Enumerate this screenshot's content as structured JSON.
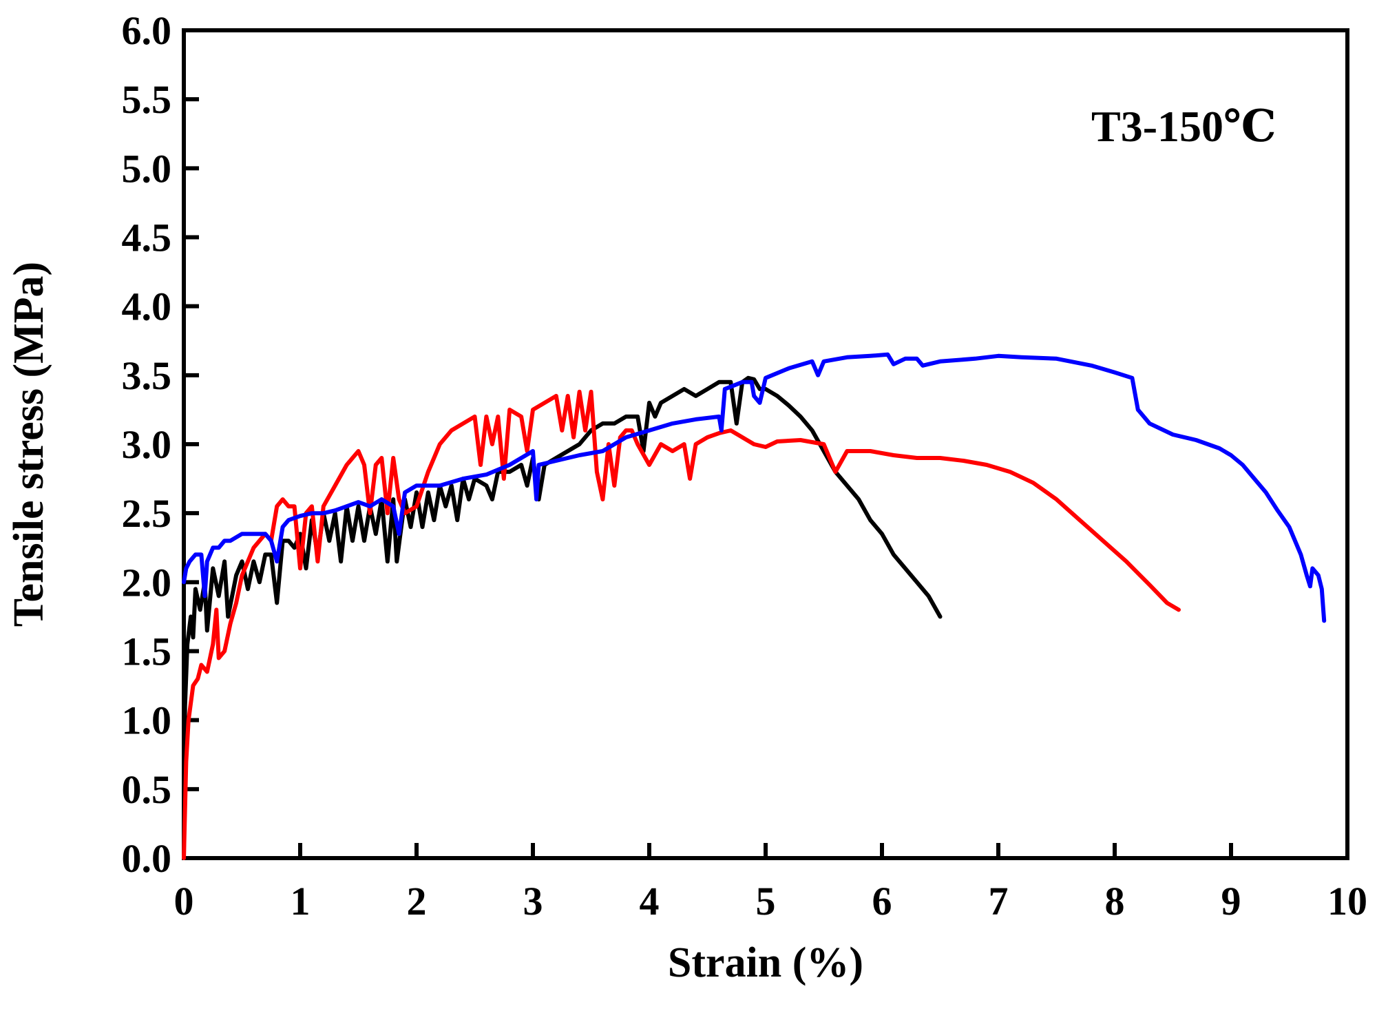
{
  "chart_data": {
    "type": "line",
    "title": "",
    "annotation": "T3-150℃",
    "xlabel": "Strain (%)",
    "ylabel": "Tensile stress (MPa)",
    "xlim": [
      0,
      10
    ],
    "ylim": [
      0,
      6
    ],
    "xticks": [
      0,
      1,
      2,
      3,
      4,
      5,
      6,
      7,
      8,
      9,
      10
    ],
    "xtick_labels": [
      "0",
      "1",
      "2",
      "3",
      "4",
      "5",
      "6",
      "7",
      "8",
      "9",
      "10"
    ],
    "yticks": [
      0,
      0.5,
      1,
      1.5,
      2,
      2.5,
      3,
      3.5,
      4,
      4.5,
      5,
      5.5,
      6
    ],
    "ytick_labels": [
      "0.0",
      "0.5",
      "1.0",
      "1.5",
      "2.0",
      "2.5",
      "3.0",
      "3.5",
      "4.0",
      "4.5",
      "5.0",
      "5.5",
      "6.0"
    ],
    "grid": false,
    "legend": "none",
    "series": [
      {
        "name": "black",
        "color": "#000000",
        "points": [
          [
            0.0,
            0.0
          ],
          [
            0.01,
            1.1
          ],
          [
            0.03,
            1.55
          ],
          [
            0.06,
            1.75
          ],
          [
            0.08,
            1.6
          ],
          [
            0.1,
            1.95
          ],
          [
            0.14,
            1.8
          ],
          [
            0.18,
            2.0
          ],
          [
            0.2,
            1.65
          ],
          [
            0.25,
            2.1
          ],
          [
            0.3,
            1.9
          ],
          [
            0.35,
            2.15
          ],
          [
            0.38,
            1.75
          ],
          [
            0.45,
            2.05
          ],
          [
            0.5,
            2.15
          ],
          [
            0.55,
            1.95
          ],
          [
            0.6,
            2.15
          ],
          [
            0.65,
            2.0
          ],
          [
            0.7,
            2.2
          ],
          [
            0.75,
            2.2
          ],
          [
            0.8,
            1.85
          ],
          [
            0.85,
            2.3
          ],
          [
            0.9,
            2.3
          ],
          [
            0.95,
            2.25
          ],
          [
            1.0,
            2.35
          ],
          [
            1.05,
            2.1
          ],
          [
            1.1,
            2.45
          ],
          [
            1.15,
            2.2
          ],
          [
            1.2,
            2.5
          ],
          [
            1.25,
            2.3
          ],
          [
            1.3,
            2.5
          ],
          [
            1.35,
            2.15
          ],
          [
            1.4,
            2.55
          ],
          [
            1.45,
            2.3
          ],
          [
            1.5,
            2.55
          ],
          [
            1.55,
            2.3
          ],
          [
            1.6,
            2.55
          ],
          [
            1.65,
            2.35
          ],
          [
            1.7,
            2.6
          ],
          [
            1.75,
            2.15
          ],
          [
            1.8,
            2.6
          ],
          [
            1.83,
            2.15
          ],
          [
            1.9,
            2.6
          ],
          [
            1.95,
            2.4
          ],
          [
            2.0,
            2.65
          ],
          [
            2.05,
            2.4
          ],
          [
            2.1,
            2.65
          ],
          [
            2.15,
            2.45
          ],
          [
            2.2,
            2.7
          ],
          [
            2.25,
            2.55
          ],
          [
            2.3,
            2.7
          ],
          [
            2.35,
            2.45
          ],
          [
            2.4,
            2.75
          ],
          [
            2.45,
            2.6
          ],
          [
            2.5,
            2.75
          ],
          [
            2.6,
            2.7
          ],
          [
            2.65,
            2.6
          ],
          [
            2.7,
            2.8
          ],
          [
            2.8,
            2.8
          ],
          [
            2.9,
            2.85
          ],
          [
            2.95,
            2.7
          ],
          [
            3.0,
            2.9
          ],
          [
            3.05,
            2.6
          ],
          [
            3.1,
            2.85
          ],
          [
            3.2,
            2.9
          ],
          [
            3.3,
            2.95
          ],
          [
            3.4,
            3.0
          ],
          [
            3.5,
            3.1
          ],
          [
            3.6,
            3.15
          ],
          [
            3.7,
            3.15
          ],
          [
            3.8,
            3.2
          ],
          [
            3.9,
            3.2
          ],
          [
            3.95,
            2.95
          ],
          [
            4.0,
            3.3
          ],
          [
            4.05,
            3.2
          ],
          [
            4.1,
            3.3
          ],
          [
            4.2,
            3.35
          ],
          [
            4.3,
            3.4
          ],
          [
            4.4,
            3.35
          ],
          [
            4.5,
            3.4
          ],
          [
            4.6,
            3.45
          ],
          [
            4.7,
            3.45
          ],
          [
            4.75,
            3.15
          ],
          [
            4.8,
            3.45
          ],
          [
            4.85,
            3.48
          ],
          [
            4.9,
            3.47
          ],
          [
            4.95,
            3.4
          ],
          [
            5.0,
            3.4
          ],
          [
            5.1,
            3.35
          ],
          [
            5.2,
            3.28
          ],
          [
            5.3,
            3.2
          ],
          [
            5.4,
            3.1
          ],
          [
            5.5,
            2.95
          ],
          [
            5.6,
            2.8
          ],
          [
            5.7,
            2.7
          ],
          [
            5.8,
            2.6
          ],
          [
            5.9,
            2.45
          ],
          [
            6.0,
            2.35
          ],
          [
            6.1,
            2.2
          ],
          [
            6.2,
            2.1
          ],
          [
            6.3,
            2.0
          ],
          [
            6.4,
            1.9
          ],
          [
            6.5,
            1.75
          ]
        ]
      },
      {
        "name": "red",
        "color": "#ff0000",
        "points": [
          [
            0.0,
            0.0
          ],
          [
            0.02,
            0.7
          ],
          [
            0.04,
            1.0
          ],
          [
            0.08,
            1.25
          ],
          [
            0.12,
            1.3
          ],
          [
            0.15,
            1.4
          ],
          [
            0.2,
            1.35
          ],
          [
            0.25,
            1.55
          ],
          [
            0.28,
            1.8
          ],
          [
            0.3,
            1.45
          ],
          [
            0.35,
            1.5
          ],
          [
            0.4,
            1.7
          ],
          [
            0.45,
            1.85
          ],
          [
            0.5,
            2.05
          ],
          [
            0.55,
            2.15
          ],
          [
            0.6,
            2.25
          ],
          [
            0.65,
            2.3
          ],
          [
            0.7,
            2.35
          ],
          [
            0.75,
            2.3
          ],
          [
            0.8,
            2.55
          ],
          [
            0.85,
            2.6
          ],
          [
            0.9,
            2.55
          ],
          [
            0.95,
            2.55
          ],
          [
            1.0,
            2.1
          ],
          [
            1.05,
            2.5
          ],
          [
            1.1,
            2.55
          ],
          [
            1.15,
            2.15
          ],
          [
            1.2,
            2.55
          ],
          [
            1.3,
            2.7
          ],
          [
            1.4,
            2.85
          ],
          [
            1.5,
            2.95
          ],
          [
            1.55,
            2.85
          ],
          [
            1.6,
            2.5
          ],
          [
            1.65,
            2.85
          ],
          [
            1.7,
            2.9
          ],
          [
            1.75,
            2.5
          ],
          [
            1.8,
            2.9
          ],
          [
            1.85,
            2.6
          ],
          [
            1.9,
            2.5
          ],
          [
            2.0,
            2.55
          ],
          [
            2.1,
            2.8
          ],
          [
            2.2,
            3.0
          ],
          [
            2.3,
            3.1
          ],
          [
            2.4,
            3.15
          ],
          [
            2.5,
            3.2
          ],
          [
            2.55,
            2.85
          ],
          [
            2.6,
            3.2
          ],
          [
            2.65,
            3.0
          ],
          [
            2.7,
            3.2
          ],
          [
            2.75,
            2.75
          ],
          [
            2.8,
            3.25
          ],
          [
            2.9,
            3.2
          ],
          [
            2.95,
            2.95
          ],
          [
            3.0,
            3.25
          ],
          [
            3.1,
            3.3
          ],
          [
            3.2,
            3.35
          ],
          [
            3.25,
            3.1
          ],
          [
            3.3,
            3.35
          ],
          [
            3.35,
            3.05
          ],
          [
            3.4,
            3.38
          ],
          [
            3.45,
            3.1
          ],
          [
            3.5,
            3.38
          ],
          [
            3.55,
            2.8
          ],
          [
            3.6,
            2.6
          ],
          [
            3.65,
            3.0
          ],
          [
            3.7,
            2.7
          ],
          [
            3.75,
            3.05
          ],
          [
            3.8,
            3.1
          ],
          [
            3.85,
            3.1
          ],
          [
            3.9,
            3.0
          ],
          [
            4.0,
            2.85
          ],
          [
            4.1,
            3.0
          ],
          [
            4.2,
            2.95
          ],
          [
            4.3,
            3.0
          ],
          [
            4.35,
            2.75
          ],
          [
            4.4,
            3.0
          ],
          [
            4.5,
            3.05
          ],
          [
            4.6,
            3.08
          ],
          [
            4.7,
            3.1
          ],
          [
            4.8,
            3.05
          ],
          [
            4.9,
            3.0
          ],
          [
            5.0,
            2.98
          ],
          [
            5.1,
            3.02
          ],
          [
            5.3,
            3.03
          ],
          [
            5.5,
            3.0
          ],
          [
            5.6,
            2.8
          ],
          [
            5.7,
            2.95
          ],
          [
            5.9,
            2.95
          ],
          [
            6.1,
            2.92
          ],
          [
            6.3,
            2.9
          ],
          [
            6.5,
            2.9
          ],
          [
            6.7,
            2.88
          ],
          [
            6.9,
            2.85
          ],
          [
            7.1,
            2.8
          ],
          [
            7.3,
            2.72
          ],
          [
            7.5,
            2.6
          ],
          [
            7.7,
            2.45
          ],
          [
            7.9,
            2.3
          ],
          [
            8.1,
            2.15
          ],
          [
            8.3,
            1.98
          ],
          [
            8.45,
            1.85
          ],
          [
            8.55,
            1.8
          ]
        ]
      },
      {
        "name": "blue",
        "color": "#0000ff",
        "points": [
          [
            0.0,
            2.0
          ],
          [
            0.02,
            2.1
          ],
          [
            0.05,
            2.15
          ],
          [
            0.1,
            2.2
          ],
          [
            0.15,
            2.2
          ],
          [
            0.18,
            1.9
          ],
          [
            0.2,
            2.15
          ],
          [
            0.25,
            2.25
          ],
          [
            0.3,
            2.25
          ],
          [
            0.35,
            2.3
          ],
          [
            0.4,
            2.3
          ],
          [
            0.5,
            2.35
          ],
          [
            0.6,
            2.35
          ],
          [
            0.7,
            2.35
          ],
          [
            0.75,
            2.3
          ],
          [
            0.8,
            2.15
          ],
          [
            0.85,
            2.4
          ],
          [
            0.9,
            2.45
          ],
          [
            1.0,
            2.48
          ],
          [
            1.1,
            2.5
          ],
          [
            1.2,
            2.5
          ],
          [
            1.3,
            2.52
          ],
          [
            1.4,
            2.55
          ],
          [
            1.5,
            2.58
          ],
          [
            1.6,
            2.55
          ],
          [
            1.7,
            2.6
          ],
          [
            1.8,
            2.55
          ],
          [
            1.85,
            2.35
          ],
          [
            1.9,
            2.65
          ],
          [
            2.0,
            2.7
          ],
          [
            2.2,
            2.7
          ],
          [
            2.4,
            2.75
          ],
          [
            2.6,
            2.78
          ],
          [
            2.8,
            2.85
          ],
          [
            3.0,
            2.95
          ],
          [
            3.03,
            2.6
          ],
          [
            3.05,
            2.85
          ],
          [
            3.2,
            2.88
          ],
          [
            3.4,
            2.92
          ],
          [
            3.6,
            2.95
          ],
          [
            3.8,
            3.05
          ],
          [
            4.0,
            3.1
          ],
          [
            4.2,
            3.15
          ],
          [
            4.4,
            3.18
          ],
          [
            4.6,
            3.2
          ],
          [
            4.62,
            3.1
          ],
          [
            4.65,
            3.4
          ],
          [
            4.8,
            3.45
          ],
          [
            4.88,
            3.45
          ],
          [
            4.9,
            3.35
          ],
          [
            4.95,
            3.3
          ],
          [
            5.0,
            3.48
          ],
          [
            5.2,
            3.55
          ],
          [
            5.4,
            3.6
          ],
          [
            5.45,
            3.5
          ],
          [
            5.5,
            3.6
          ],
          [
            5.7,
            3.63
          ],
          [
            5.9,
            3.64
          ],
          [
            6.05,
            3.65
          ],
          [
            6.1,
            3.58
          ],
          [
            6.2,
            3.62
          ],
          [
            6.3,
            3.62
          ],
          [
            6.35,
            3.57
          ],
          [
            6.5,
            3.6
          ],
          [
            6.8,
            3.62
          ],
          [
            7.0,
            3.64
          ],
          [
            7.2,
            3.63
          ],
          [
            7.5,
            3.62
          ],
          [
            7.8,
            3.57
          ],
          [
            8.0,
            3.52
          ],
          [
            8.15,
            3.48
          ],
          [
            8.2,
            3.25
          ],
          [
            8.3,
            3.15
          ],
          [
            8.5,
            3.07
          ],
          [
            8.7,
            3.03
          ],
          [
            8.9,
            2.97
          ],
          [
            9.0,
            2.92
          ],
          [
            9.1,
            2.85
          ],
          [
            9.2,
            2.75
          ],
          [
            9.3,
            2.65
          ],
          [
            9.4,
            2.52
          ],
          [
            9.5,
            2.4
          ],
          [
            9.6,
            2.2
          ],
          [
            9.65,
            2.05
          ],
          [
            9.68,
            1.97
          ],
          [
            9.7,
            2.1
          ],
          [
            9.75,
            2.05
          ],
          [
            9.78,
            1.95
          ],
          [
            9.8,
            1.72
          ]
        ]
      }
    ]
  }
}
